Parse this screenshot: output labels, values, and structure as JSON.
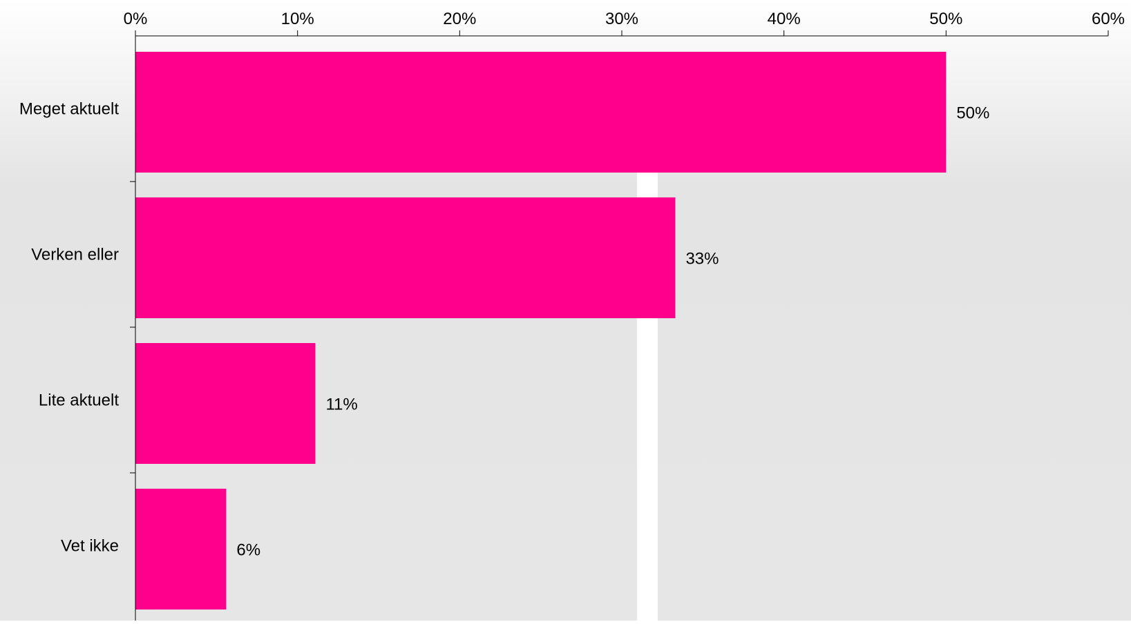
{
  "chart_data": {
    "type": "bar",
    "orientation": "horizontal",
    "categories": [
      "Meget aktuelt",
      "Verken eller",
      "Lite aktuelt",
      "Vet ikke"
    ],
    "values": [
      50,
      33.3,
      11.1,
      5.6
    ],
    "value_labels": [
      "50%",
      "33%",
      "11%",
      "6%"
    ],
    "xlim": [
      0,
      60
    ],
    "x_ticks": [
      0,
      10,
      20,
      30,
      40,
      50,
      60
    ],
    "x_tick_labels": [
      "0%",
      "10%",
      "20%",
      "30%",
      "40%",
      "50%",
      "60%"
    ],
    "x_axis_position": "top",
    "bar_color": "#FF008C",
    "grid": false,
    "legend": "none",
    "title": "",
    "xlabel": "",
    "ylabel": ""
  }
}
